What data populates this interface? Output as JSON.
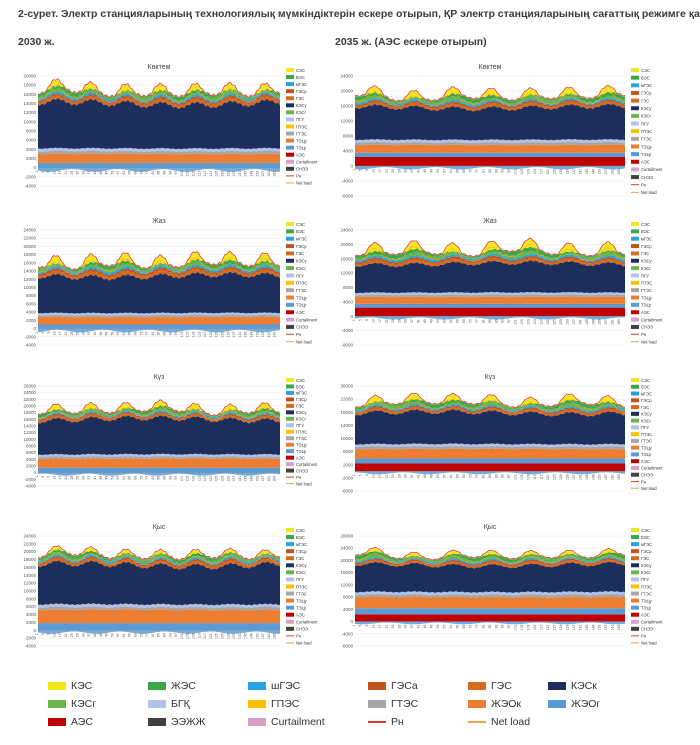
{
  "header": {
    "line1": "2-сурет. Электр станцияларының технологиялық мүмкіндіктерін ескере отырып, ҚР электр станцияларының сағаттық режимге қатысуы",
    "left_sub": "2030 ж.",
    "right_sub": "2035 ж. (АЭС ескере отырып)"
  },
  "colors": {
    "КЭС": "#f5e61c",
    "ВЭС": "#3aa646",
    "шГЭС": "#26a4dd",
    "ГЭСа": "#c0541c",
    "ГЭС": "#d56b1f",
    "КЭСк": "#1e2e5c",
    "КЭСг": "#6ab64a",
    "БГҚ": "#aec3e8",
    "ГПЭС": "#ffc000",
    "ГТЭС": "#a6a6a6",
    "ЖЭОк": "#ed7d31",
    "ЖЭОг": "#5b9bd5",
    "АЭС": "#c00000",
    "ЭЭЖЖ": "#404040",
    "Curtailment": "#d9a0c8",
    "Рн": "#e03a2a",
    "Net load": "#f4a24a"
  },
  "legend": [
    {
      "label": "КЭС",
      "key": "КЭС",
      "kind": "box"
    },
    {
      "label": "ЖЭС",
      "key": "ВЭС",
      "kind": "box"
    },
    {
      "label": "шГЭС",
      "key": "шГЭС",
      "kind": "box"
    },
    {
      "label": "ГЭСа",
      "key": "ГЭСа",
      "kind": "box"
    },
    {
      "label": "ГЭС",
      "key": "ГЭС",
      "kind": "box"
    },
    {
      "label": "КЭСк",
      "key": "КЭСк",
      "kind": "box"
    },
    {
      "label": "КЭСг",
      "key": "КЭСг",
      "kind": "box"
    },
    {
      "label": "БГҚ",
      "key": "БГҚ",
      "kind": "box"
    },
    {
      "label": "ГПЭС",
      "key": "ГПЭС",
      "kind": "box"
    },
    {
      "label": "ГТЭС",
      "key": "ГТЭС",
      "kind": "box"
    },
    {
      "label": "ЖЭОк",
      "key": "ЖЭОк",
      "kind": "box"
    },
    {
      "label": "ЖЭОг",
      "key": "ЖЭОг",
      "kind": "box"
    },
    {
      "label": "АЭС",
      "key": "АЭС",
      "kind": "box"
    },
    {
      "label": "ЭЭЖЖ",
      "key": "ЭЭЖЖ",
      "kind": "box"
    },
    {
      "label": "Curtailment",
      "key": "Curtailment",
      "kind": "box"
    },
    {
      "label": "Рн",
      "key": "Рн",
      "kind": "line"
    },
    {
      "label": "Net load",
      "key": "Net load",
      "kind": "line"
    }
  ],
  "panel_legend": [
    "СЭС",
    "ВЭС",
    "мГЭС",
    "ГЭСр",
    "ГЭС",
    "КЭСу",
    "КЭСг",
    "ПГУ",
    "ГПЭС",
    "ГТЭС",
    "ТЭЦу",
    "ТЭЦг",
    "АЭС",
    "Curtailment",
    "СНЭЭ",
    "Рн",
    "Net load"
  ],
  "panel_legend_colors": [
    "#f5e61c",
    "#3aa646",
    "#26a4dd",
    "#c0541c",
    "#d56b1f",
    "#1e2e5c",
    "#6ab64a",
    "#aec3e8",
    "#ffc000",
    "#a6a6a6",
    "#ed7d31",
    "#5b9bd5",
    "#c00000",
    "#d9a0c8",
    "#404040",
    "#e03a2a",
    "#f4a24a"
  ],
  "chart_data": [
    {
      "type": "area",
      "title": "Көктем",
      "year": "2030",
      "ylim": [
        -4000,
        20000
      ],
      "yticks": [
        -4000,
        -2000,
        0,
        2000,
        4000,
        6000,
        8000,
        10000,
        12000,
        14000,
        16000,
        18000,
        20000
      ],
      "base": {
        "coal": 9800,
        "hydro": 1500,
        "chp": 3000,
        "gas": 1200,
        "wind": 900,
        "solar": 600,
        "nuclear": 0
      },
      "xticks": "1,5,9,13,17,21,25,29,33,37,41,45,49,53,57,61,65,69,73,77,81,85,89,93,97,101,105,109,113,117,121,125,129,133,137,141,145,149,153,157,161,165"
    },
    {
      "type": "area",
      "title": "Көктем",
      "year": "2035",
      "ylim": [
        -8000,
        24000
      ],
      "yticks": [
        -8000,
        -4000,
        0,
        4000,
        8000,
        12000,
        16000,
        20000,
        24000
      ],
      "base": {
        "coal": 8600,
        "hydro": 1600,
        "chp": 3200,
        "gas": 1400,
        "wind": 1200,
        "solar": 800,
        "nuclear": 2400
      },
      "xticks": "1,5,9,13,17,21,25,29,33,37,41,45,49,53,57,61,65,69,73,77,81,85,89,93,97,101,105,109,113,117,121,125,129,133,137,141,145,149,153,157,161,165"
    },
    {
      "type": "area",
      "title": "Жаз",
      "year": "2030",
      "ylim": [
        -4000,
        24000
      ],
      "yticks": [
        -4000,
        -2000,
        0,
        2000,
        4000,
        6000,
        8000,
        10000,
        12000,
        14000,
        16000,
        18000,
        20000,
        22000,
        24000
      ],
      "base": {
        "coal": 9000,
        "hydro": 1800,
        "chp": 2800,
        "gas": 1000,
        "wind": 1000,
        "solar": 900,
        "nuclear": 0
      },
      "xticks": "1,5,9,13,17,21,25,29,33,37,41,45,49,53,57,61,65,69,73,77,81,85,89,93,97,101,105,109,113,117,121,125,129,133,137,141,145,149,153,157,161,165"
    },
    {
      "type": "area",
      "title": "Жаз",
      "year": "2035",
      "ylim": [
        -8000,
        24000
      ],
      "yticks": [
        -8000,
        -4000,
        0,
        4000,
        8000,
        12000,
        16000,
        20000,
        24000
      ],
      "base": {
        "coal": 8000,
        "hydro": 1800,
        "chp": 3000,
        "gas": 1200,
        "wind": 1300,
        "solar": 1100,
        "nuclear": 2400
      },
      "xticks": "1,5,9,13,17,21,25,29,33,37,41,45,49,53,57,61,65,69,73,77,81,85,89,93,97,101,105,109,113,117,121,125,129,133,137,141,145,149,153,157,161,165"
    },
    {
      "type": "area",
      "title": "Күз",
      "year": "2030",
      "ylim": [
        -4000,
        26000
      ],
      "yticks": [
        -4000,
        -2000,
        0,
        2000,
        4000,
        6000,
        8000,
        10000,
        12000,
        14000,
        16000,
        18000,
        20000,
        22000,
        24000,
        26000
      ],
      "base": {
        "coal": 10500,
        "hydro": 1500,
        "chp": 4200,
        "gas": 1300,
        "wind": 1000,
        "solar": 700,
        "nuclear": 0
      },
      "xticks": "1,5,9,13,17,21,25,29,33,37,41,45,49,53,57,61,65,69,73,77,81,85,89,93,97,101,105,109,113,117,121,125,129,133,137,141,145,149,153,157,161,165"
    },
    {
      "type": "area",
      "title": "Күз",
      "year": "2035",
      "ylim": [
        -6000,
        26000
      ],
      "yticks": [
        -6000,
        -2000,
        2000,
        6000,
        10000,
        14000,
        18000,
        22000,
        26000
      ],
      "base": {
        "coal": 9500,
        "hydro": 1600,
        "chp": 4400,
        "gas": 1500,
        "wind": 1300,
        "solar": 800,
        "nuclear": 2400
      },
      "xticks": "1,5,9,13,17,21,25,29,33,37,41,45,49,53,57,61,65,69,73,77,81,85,89,93,97,101,105,109,113,117,121,125,129,133,137,141,145,149,153,157,161,165"
    },
    {
      "type": "area",
      "title": "Қыс",
      "year": "2030",
      "ylim": [
        -4000,
        24000
      ],
      "yticks": [
        -4000,
        -2000,
        0,
        2000,
        4000,
        6000,
        8000,
        10000,
        12000,
        14000,
        16000,
        18000,
        20000,
        22000,
        24000
      ],
      "base": {
        "coal": 10000,
        "hydro": 1500,
        "chp": 5200,
        "gas": 1400,
        "wind": 900,
        "solar": 400,
        "nuclear": 0
      },
      "xticks": "1,5,9,13,17,21,25,29,33,37,41,45,49,53,57,61,65,69,73,77,81,85,89,93,97,101,105,109,113,117,121,125,129,133,137,141,145,149,153,157,161,165"
    },
    {
      "type": "area",
      "title": "Қыс",
      "year": "2035",
      "ylim": [
        -8000,
        28000
      ],
      "yticks": [
        -8000,
        -4000,
        0,
        4000,
        8000,
        12000,
        16000,
        20000,
        24000,
        28000
      ],
      "base": {
        "coal": 8800,
        "hydro": 1600,
        "chp": 5600,
        "gas": 1700,
        "wind": 1300,
        "solar": 500,
        "nuclear": 2400
      },
      "xticks": "1,5,9,13,17,21,25,29,33,37,41,45,49,53,57,61,65,69,73,77,81,85,89,93,97,101,105,109,113,117,121,125,129,133,137,141,145,149,153,157,161,165"
    }
  ]
}
